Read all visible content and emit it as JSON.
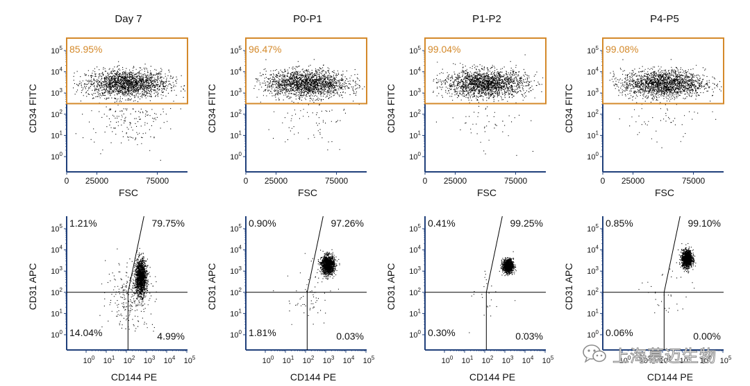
{
  "colors": {
    "axis": "#1f3f7a",
    "gate": "#d4892a",
    "dots": "#000000",
    "quad": "#000000",
    "text": "#111111"
  },
  "chart_data": [
    {
      "type": "scatter",
      "title": "Day 7",
      "xlabel": "FSC",
      "ylabel": "CD34 FITC",
      "xscale": "linear",
      "yscale": "log",
      "xticks": [
        "0",
        "25000",
        "75000"
      ],
      "yticks": [
        "0",
        "1",
        "2",
        "3",
        "4",
        "5"
      ],
      "gate_percent": "85.95%"
    },
    {
      "type": "scatter",
      "title": "P0-P1",
      "xlabel": "FSC",
      "ylabel": "CD34 FITC",
      "xscale": "linear",
      "yscale": "log",
      "xticks": [
        "0",
        "25000",
        "75000"
      ],
      "yticks": [
        "0",
        "1",
        "2",
        "3",
        "4",
        "5"
      ],
      "gate_percent": "96.47%"
    },
    {
      "type": "scatter",
      "title": "P1-P2",
      "xlabel": "FSC",
      "ylabel": "CD34 FITC",
      "xscale": "linear",
      "yscale": "log",
      "xticks": [
        "0",
        "25000",
        "75000"
      ],
      "yticks": [
        "0",
        "1",
        "2",
        "3",
        "4",
        "5"
      ],
      "gate_percent": "99.04%"
    },
    {
      "type": "scatter",
      "title": "P4-P5",
      "xlabel": "FSC",
      "ylabel": "CD34 FITC",
      "xscale": "linear",
      "yscale": "log",
      "xticks": [
        "0",
        "25000",
        "75000"
      ],
      "yticks": [
        "0",
        "1",
        "2",
        "3",
        "4",
        "5"
      ],
      "gate_percent": "99.08%"
    },
    {
      "type": "scatter",
      "xlabel": "CD144 PE",
      "ylabel": "CD31 APC",
      "xscale": "log",
      "yscale": "log",
      "xticks": [
        "0",
        "1",
        "2",
        "3",
        "4",
        "5"
      ],
      "yticks": [
        "0",
        "1",
        "2",
        "3",
        "4",
        "5"
      ],
      "quadrants": {
        "upper_left": "1.21%",
        "upper_right": "79.75%",
        "lower_left": "14.04%",
        "lower_right": "4.99%"
      }
    },
    {
      "type": "scatter",
      "xlabel": "CD144 PE",
      "ylabel": "CD31 APC",
      "xscale": "log",
      "yscale": "log",
      "xticks": [
        "0",
        "1",
        "2",
        "3",
        "4",
        "5"
      ],
      "yticks": [
        "0",
        "1",
        "2",
        "3",
        "4",
        "5"
      ],
      "quadrants": {
        "upper_left": "0.90%",
        "upper_right": "97.26%",
        "lower_left": "1.81%",
        "lower_right": "0.03%"
      }
    },
    {
      "type": "scatter",
      "xlabel": "CD144 PE",
      "ylabel": "CD31 APC",
      "xscale": "log",
      "yscale": "log",
      "xticks": [
        "0",
        "1",
        "2",
        "3",
        "4",
        "5"
      ],
      "yticks": [
        "0",
        "1",
        "2",
        "3",
        "4",
        "5"
      ],
      "quadrants": {
        "upper_left": "0.41%",
        "upper_right": "99.25%",
        "lower_left": "0.30%",
        "lower_right": "0.03%"
      }
    },
    {
      "type": "scatter",
      "xlabel": "CD144 PE",
      "ylabel": "CD31 APC",
      "xscale": "log",
      "yscale": "log",
      "xticks": [
        "0",
        "1",
        "2",
        "3",
        "4",
        "5"
      ],
      "yticks": [
        "0",
        "1",
        "2",
        "3",
        "4",
        "5"
      ],
      "quadrants": {
        "upper_left": "0.85%",
        "upper_right": "99.10%",
        "lower_left": "0.06%",
        "lower_right": "0.00%"
      }
    }
  ],
  "watermark": {
    "text": "上海慕迈生物",
    "icon": "wechat-icon"
  }
}
